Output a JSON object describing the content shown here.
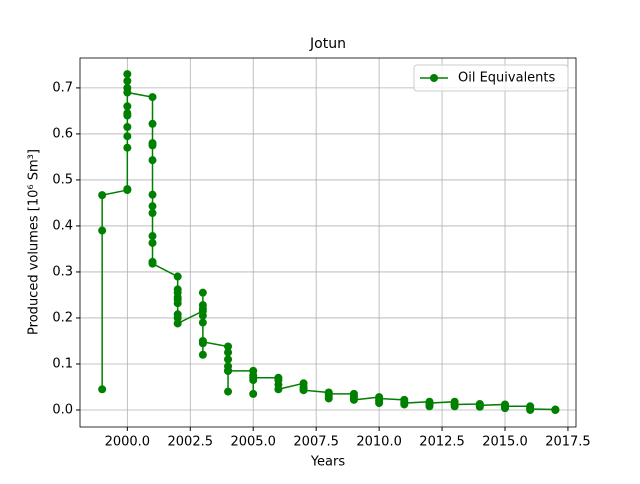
{
  "chart_data": {
    "type": "line",
    "title": "Jotun",
    "x_label": "Years",
    "y_label": "Produced volumes [10⁶ Sm³]",
    "x": [
      1999,
      1999,
      1999,
      2000,
      2000,
      2000,
      2000,
      2000,
      2000,
      2000,
      2000,
      2000,
      2000,
      2000,
      2000,
      2001,
      2001,
      2001,
      2001,
      2001,
      2001,
      2001,
      2001,
      2001,
      2001,
      2001,
      2001,
      2002,
      2002,
      2002,
      2002,
      2002,
      2002,
      2002,
      2002,
      2002,
      2003,
      2003,
      2003,
      2003,
      2003,
      2003,
      2003,
      2003,
      2003,
      2003,
      2004,
      2004,
      2004,
      2004,
      2004,
      2004,
      2004,
      2005,
      2005,
      2005,
      2005,
      2005,
      2006,
      2006,
      2006,
      2006,
      2007,
      2007,
      2007,
      2007,
      2008,
      2008,
      2008,
      2008,
      2009,
      2009,
      2009,
      2009,
      2010,
      2010,
      2010,
      2010,
      2011,
      2011,
      2011,
      2011,
      2012,
      2012,
      2012,
      2012,
      2013,
      2013,
      2013,
      2013,
      2014,
      2014,
      2014,
      2014,
      2015,
      2015,
      2015,
      2015,
      2016,
      2016,
      2016,
      2016,
      2017,
      2017,
      2017
    ],
    "series": [
      {
        "name": "Oil Equivalents",
        "color": "#008000",
        "values": [
          0.045,
          0.39,
          0.467,
          0.478,
          0.48,
          0.57,
          0.595,
          0.615,
          0.645,
          0.64,
          0.66,
          0.7,
          0.715,
          0.73,
          0.69,
          0.68,
          0.622,
          0.58,
          0.575,
          0.543,
          0.468,
          0.443,
          0.428,
          0.378,
          0.363,
          0.322,
          0.318,
          0.29,
          0.262,
          0.255,
          0.245,
          0.24,
          0.232,
          0.208,
          0.2,
          0.188,
          0.215,
          0.255,
          0.228,
          0.22,
          0.205,
          0.19,
          0.15,
          0.12,
          0.145,
          0.148,
          0.138,
          0.125,
          0.11,
          0.095,
          0.085,
          0.04,
          0.085,
          0.085,
          0.075,
          0.065,
          0.035,
          0.07,
          0.07,
          0.065,
          0.055,
          0.045,
          0.058,
          0.05,
          0.045,
          0.043,
          0.038,
          0.03,
          0.025,
          0.035,
          0.035,
          0.03,
          0.025,
          0.022,
          0.028,
          0.02,
          0.015,
          0.025,
          0.022,
          0.018,
          0.012,
          0.015,
          0.018,
          0.012,
          0.008,
          0.015,
          0.018,
          0.012,
          0.008,
          0.012,
          0.013,
          0.01,
          0.007,
          0.01,
          0.012,
          0.008,
          0.004,
          0.008,
          0.008,
          0.004,
          0.0,
          0.002,
          0.001,
          0.0,
          0.0
        ]
      }
    ],
    "xlim": [
      1998.12,
      2017.82
    ],
    "ylim": [
      -0.037,
      0.765
    ],
    "xticks": [
      {
        "value": 2000,
        "label": "2000.0"
      },
      {
        "value": 2002.5,
        "label": "2002.5"
      },
      {
        "value": 2005,
        "label": "2005.0"
      },
      {
        "value": 2007.5,
        "label": "2007.5"
      },
      {
        "value": 2010,
        "label": "2010.0"
      },
      {
        "value": 2012.5,
        "label": "2012.5"
      },
      {
        "value": 2015,
        "label": "2015.0"
      },
      {
        "value": 2017.5,
        "label": "2017.5"
      }
    ],
    "yticks": [
      {
        "value": 0,
        "label": "0.0"
      },
      0.1,
      0.2,
      0.3,
      0.4,
      0.5,
      0.6,
      0.7
    ],
    "grid": true,
    "legend": "upper right"
  }
}
